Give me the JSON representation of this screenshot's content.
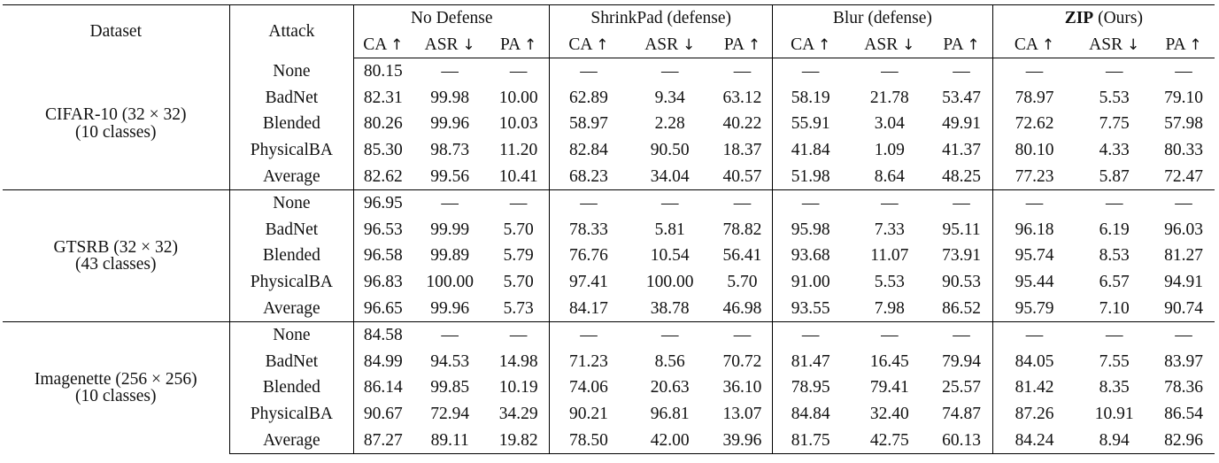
{
  "header": {
    "dataset": "Dataset",
    "attack": "Attack",
    "groups": [
      "No Defense",
      "ShrinkPad (defense)",
      "Blur (defense)"
    ],
    "zip_group_bold": "ZIP",
    "zip_group_rest": "(Ours)",
    "metrics": [
      "CA",
      "ASR",
      "PA"
    ],
    "arrows": [
      "↑",
      "↓",
      "↑"
    ]
  },
  "datasets": [
    {
      "name": "CIFAR-10 (32 × 32)",
      "classes": "(10 classes)",
      "rows": [
        {
          "attack": "None",
          "values": [
            "80.15",
            "—",
            "—",
            "—",
            "—",
            "—",
            "—",
            "—",
            "—",
            "—",
            "—",
            "—"
          ],
          "bold": []
        },
        {
          "attack": "BadNet",
          "values": [
            "82.31",
            "99.98",
            "10.00",
            "62.89",
            "9.34",
            "63.12",
            "58.19",
            "21.78",
            "53.47",
            "78.97",
            "5.53",
            "79.10"
          ],
          "bold": [
            9,
            10,
            11
          ]
        },
        {
          "attack": "Blended",
          "values": [
            "80.26",
            "99.96",
            "10.03",
            "58.97",
            "2.28",
            "40.22",
            "55.91",
            "3.04",
            "49.91",
            "72.62",
            "7.75",
            "57.98"
          ],
          "bold": [
            4,
            9,
            11
          ]
        },
        {
          "attack": "PhysicalBA",
          "values": [
            "85.30",
            "98.73",
            "11.20",
            "82.84",
            "90.50",
            "18.37",
            "41.84",
            "1.09",
            "41.37",
            "80.10",
            "4.33",
            "80.33"
          ],
          "bold": [
            3,
            7,
            11
          ]
        },
        {
          "attack": "Average",
          "values": [
            "82.62",
            "99.56",
            "10.41",
            "68.23",
            "34.04",
            "40.57",
            "51.98",
            "8.64",
            "48.25",
            "77.23",
            "5.87",
            "72.47"
          ],
          "bold": [
            9,
            10,
            11
          ]
        }
      ]
    },
    {
      "name": "GTSRB (32 × 32)",
      "classes": "(43 classes)",
      "rows": [
        {
          "attack": "None",
          "values": [
            "96.95",
            "—",
            "—",
            "—",
            "—",
            "—",
            "—",
            "—",
            "—",
            "—",
            "—",
            "—"
          ],
          "bold": []
        },
        {
          "attack": "BadNet",
          "values": [
            "96.53",
            "99.99",
            "5.70",
            "78.33",
            "5.81",
            "78.82",
            "95.98",
            "7.33",
            "95.11",
            "96.18",
            "6.19",
            "96.03"
          ],
          "bold": [
            4,
            9,
            11
          ]
        },
        {
          "attack": "Blended",
          "values": [
            "96.58",
            "99.89",
            "5.79",
            "76.76",
            "10.54",
            "56.41",
            "93.68",
            "11.07",
            "73.91",
            "95.74",
            "8.53",
            "81.27"
          ],
          "bold": [
            9,
            10,
            11
          ]
        },
        {
          "attack": "PhysicalBA",
          "values": [
            "96.83",
            "100.00",
            "5.70",
            "97.41",
            "100.00",
            "5.70",
            "91.00",
            "5.53",
            "90.53",
            "95.44",
            "6.57",
            "94.91"
          ],
          "bold": [
            3,
            7,
            11
          ]
        },
        {
          "attack": "Average",
          "values": [
            "96.65",
            "99.96",
            "5.73",
            "84.17",
            "38.78",
            "46.98",
            "93.55",
            "7.98",
            "86.52",
            "95.79",
            "7.10",
            "90.74"
          ],
          "bold": [
            9,
            10,
            11
          ]
        }
      ]
    },
    {
      "name": "Imagenette (256 × 256)",
      "classes": "(10 classes)",
      "rows": [
        {
          "attack": "None",
          "values": [
            "84.58",
            "—",
            "—",
            "—",
            "—",
            "—",
            "—",
            "—",
            "—",
            "—",
            "—",
            "—"
          ],
          "bold": []
        },
        {
          "attack": "BadNet",
          "values": [
            "84.99",
            "94.53",
            "14.98",
            "71.23",
            "8.56",
            "70.72",
            "81.47",
            "16.45",
            "79.94",
            "84.05",
            "7.55",
            "83.97"
          ],
          "bold": [
            9,
            10,
            11
          ]
        },
        {
          "attack": "Blended",
          "values": [
            "86.14",
            "99.85",
            "10.19",
            "74.06",
            "20.63",
            "36.10",
            "78.95",
            "79.41",
            "25.57",
            "81.42",
            "8.35",
            "78.36"
          ],
          "bold": [
            9,
            10,
            11
          ]
        },
        {
          "attack": "PhysicalBA",
          "values": [
            "90.67",
            "72.94",
            "34.29",
            "90.21",
            "96.81",
            "13.07",
            "84.84",
            "32.40",
            "74.87",
            "87.26",
            "10.91",
            "86.54"
          ],
          "bold": [
            3,
            10,
            11
          ]
        },
        {
          "attack": "Average",
          "values": [
            "87.27",
            "89.11",
            "19.82",
            "78.50",
            "42.00",
            "39.96",
            "81.75",
            "42.75",
            "60.13",
            "84.24",
            "8.94",
            "82.96"
          ],
          "bold": [
            9,
            10,
            11
          ]
        }
      ]
    }
  ]
}
